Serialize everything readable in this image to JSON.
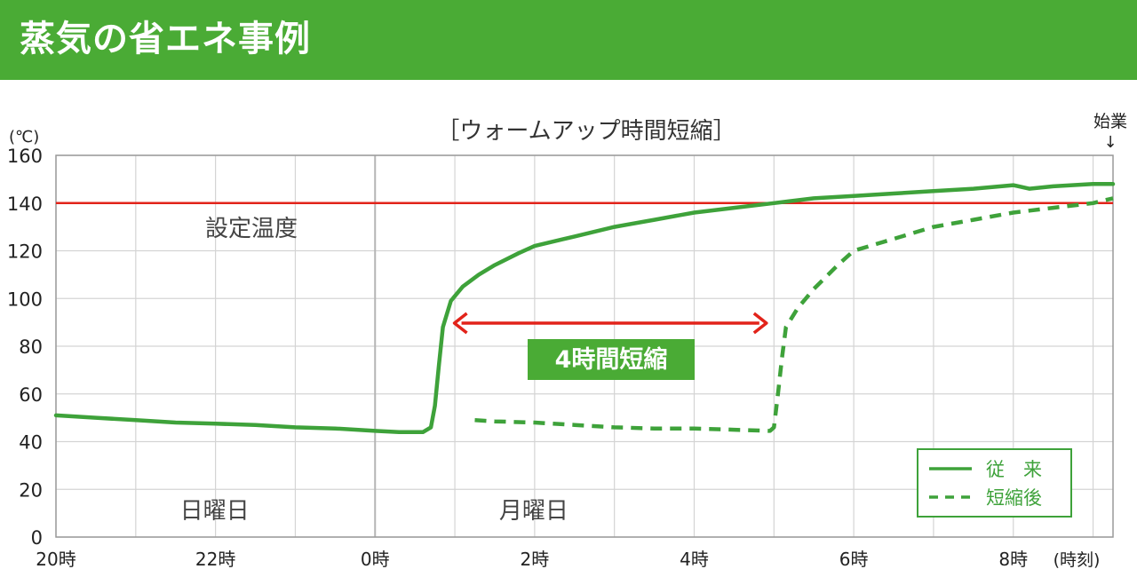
{
  "header": {
    "title": "蒸気の省エネ事例"
  },
  "colors": {
    "green": "#3ea23a",
    "banner_green": "#4aab35",
    "red": "#e2231a",
    "grid": "#d4d4d4",
    "divider": "#b5b5b5"
  },
  "chart_data": {
    "type": "line",
    "title": "［ウォームアップ時間短縮］",
    "y_unit_label": "(℃)",
    "x_unit_label": "(時刻)",
    "ylim": [
      0,
      160
    ],
    "yticks": [
      0,
      20,
      40,
      60,
      80,
      100,
      120,
      140,
      160
    ],
    "xlim": [
      20,
      33.25
    ],
    "xticks": [
      {
        "x": 20,
        "label": "20時"
      },
      {
        "x": 22,
        "label": "22時"
      },
      {
        "x": 24,
        "label": "0時"
      },
      {
        "x": 26,
        "label": "2時"
      },
      {
        "x": 28,
        "label": "4時"
      },
      {
        "x": 30,
        "label": "6時"
      },
      {
        "x": 32,
        "label": "8時"
      }
    ],
    "grid": true,
    "day_divider_x": 24,
    "day_labels": [
      {
        "x": 22,
        "label": "日曜日"
      },
      {
        "x": 26,
        "label": "月曜日"
      }
    ],
    "setpoint": {
      "y": 140,
      "label": "設定温度"
    },
    "start_marker": {
      "x": 33.25,
      "label": "始業",
      "arrow": "↓"
    },
    "shortening": {
      "x_from": 24.95,
      "x_to": 28.95,
      "label": "4時間短縮"
    },
    "legend": {
      "position": "bottom-right"
    },
    "series": [
      {
        "name": "従　来",
        "style": "solid",
        "points": [
          [
            20,
            51
          ],
          [
            20.5,
            50
          ],
          [
            21,
            49
          ],
          [
            21.5,
            48
          ],
          [
            22,
            47.5
          ],
          [
            22.5,
            47
          ],
          [
            23,
            46
          ],
          [
            23.5,
            45.5
          ],
          [
            24,
            44.5
          ],
          [
            24.3,
            44
          ],
          [
            24.6,
            44
          ],
          [
            24.7,
            46
          ],
          [
            24.75,
            55
          ],
          [
            24.8,
            72
          ],
          [
            24.85,
            88
          ],
          [
            24.95,
            99
          ],
          [
            25.1,
            105
          ],
          [
            25.3,
            110
          ],
          [
            25.5,
            114
          ],
          [
            25.8,
            119
          ],
          [
            26,
            122
          ],
          [
            26.5,
            126
          ],
          [
            27,
            130
          ],
          [
            27.5,
            133
          ],
          [
            28,
            136
          ],
          [
            28.5,
            138
          ],
          [
            29,
            140
          ],
          [
            29.5,
            142
          ],
          [
            30,
            143
          ],
          [
            30.5,
            144
          ],
          [
            31,
            145
          ],
          [
            31.5,
            146
          ],
          [
            32,
            147.5
          ],
          [
            32.2,
            146
          ],
          [
            32.5,
            147
          ],
          [
            33,
            148
          ],
          [
            33.25,
            148
          ]
        ]
      },
      {
        "name": "短縮後",
        "style": "dashed",
        "points": [
          [
            25.25,
            49
          ],
          [
            25.5,
            48.5
          ],
          [
            26,
            48
          ],
          [
            26.5,
            47
          ],
          [
            27,
            46
          ],
          [
            27.5,
            45.5
          ],
          [
            28,
            45.5
          ],
          [
            28.5,
            45
          ],
          [
            28.95,
            44.5
          ],
          [
            29,
            46
          ],
          [
            29.05,
            60
          ],
          [
            29.1,
            75
          ],
          [
            29.15,
            88
          ],
          [
            29.3,
            96
          ],
          [
            29.5,
            104
          ],
          [
            29.8,
            114
          ],
          [
            30,
            120
          ],
          [
            30.5,
            125
          ],
          [
            31,
            130
          ],
          [
            31.5,
            133
          ],
          [
            32,
            136
          ],
          [
            32.5,
            138
          ],
          [
            33,
            140
          ],
          [
            33.25,
            142
          ]
        ]
      }
    ]
  }
}
